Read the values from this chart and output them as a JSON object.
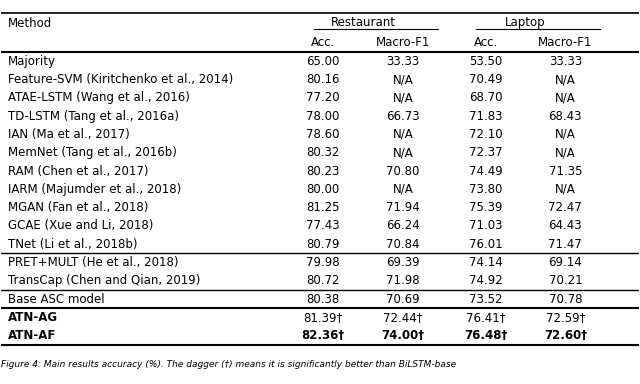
{
  "title": "",
  "col_headers_top": [
    "",
    "Restaurant",
    "",
    "Laptop",
    ""
  ],
  "col_headers_sub": [
    "Method",
    "Acc.",
    "Macro-F1",
    "Acc.",
    "Macro-F1"
  ],
  "rows": [
    [
      "Majority",
      "65.00",
      "33.33",
      "53.50",
      "33.33"
    ],
    [
      "Feature-SVM (Kiritchenko et al., 2014)",
      "80.16",
      "N/A",
      "70.49",
      "N/A"
    ],
    [
      "ATAE-LSTM (Wang et al., 2016)",
      "77.20",
      "N/A",
      "68.70",
      "N/A"
    ],
    [
      "TD-LSTM (Tang et al., 2016a)",
      "78.00",
      "66.73",
      "71.83",
      "68.43"
    ],
    [
      "IAN (Ma et al., 2017)",
      "78.60",
      "N/A",
      "72.10",
      "N/A"
    ],
    [
      "MemNet (Tang et al., 2016b)",
      "80.32",
      "N/A",
      "72.37",
      "N/A"
    ],
    [
      "RAM (Chen et al., 2017)",
      "80.23",
      "70.80",
      "74.49",
      "71.35"
    ],
    [
      "IARM (Majumder et al., 2018)",
      "80.00",
      "N/A",
      "73.80",
      "N/A"
    ],
    [
      "MGAN (Fan et al., 2018)",
      "81.25",
      "71.94",
      "75.39",
      "72.47"
    ],
    [
      "GCAE (Xue and Li, 2018)",
      "77.43",
      "66.24",
      "71.03",
      "64.43"
    ],
    [
      "TNet (Li et al., 2018b)",
      "80.79",
      "70.84",
      "76.01",
      "71.47"
    ],
    [
      "PRET+MULT (He et al., 2018)",
      "79.98",
      "69.39",
      "74.14",
      "69.14"
    ],
    [
      "TransCap (Chen and Qian, 2019)",
      "80.72",
      "71.98",
      "74.92",
      "70.21"
    ],
    [
      "Base ASC model",
      "80.38",
      "70.69",
      "73.52",
      "70.78"
    ],
    [
      "ATN-AG",
      "81.39†",
      "72.44†",
      "76.41†",
      "72.59†"
    ],
    [
      "ATN-AF",
      "82.36†",
      "74.00†",
      "76.48†",
      "72.60†"
    ]
  ],
  "bold_rows": [
    14,
    15
  ],
  "bold_values_row15": true,
  "section_dividers_after": [
    10,
    12,
    13
  ],
  "bg_color": "#ffffff",
  "text_color": "#000000",
  "font_size": 8.5,
  "header_font_size": 8.5
}
